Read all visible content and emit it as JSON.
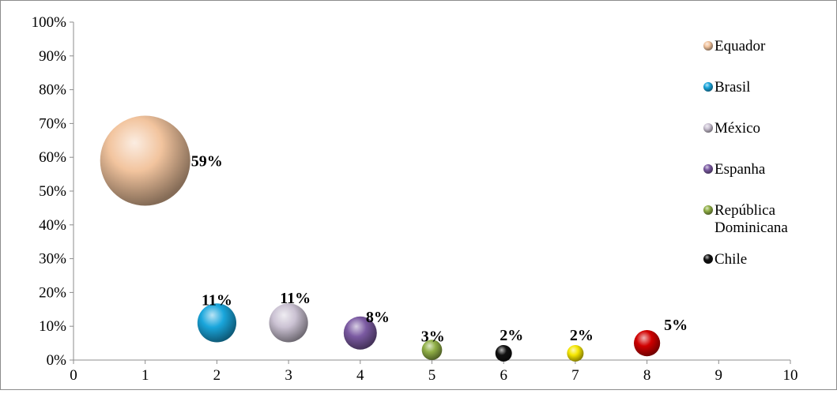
{
  "chart_data": {
    "type": "bubble",
    "xlim": [
      0,
      10
    ],
    "ylim": [
      0,
      100
    ],
    "x_ticks": [
      0,
      1,
      2,
      3,
      4,
      5,
      6,
      7,
      8,
      9,
      10
    ],
    "y_ticks": [
      "0%",
      "10%",
      "20%",
      "30%",
      "40%",
      "50%",
      "60%",
      "70%",
      "80%",
      "90%",
      "100%"
    ],
    "grid": false,
    "legend_position": "right",
    "series": [
      {
        "name": "Equador",
        "x": 1,
        "y": 59,
        "size": 59,
        "label": "59%",
        "color": "#f2c49e"
      },
      {
        "name": "Brasil",
        "x": 2,
        "y": 11,
        "size": 11,
        "label": "11%",
        "color": "#1aa6dc"
      },
      {
        "name": "México",
        "x": 3,
        "y": 11,
        "size": 11,
        "label": "11%",
        "color": "#cbc2d3"
      },
      {
        "name": "Espanha",
        "x": 4,
        "y": 8,
        "size": 8,
        "label": "8%",
        "color": "#7b5aa2"
      },
      {
        "name": "República Dominicana",
        "x": 5,
        "y": 3,
        "size": 3,
        "label": "3%",
        "color": "#8fae45"
      },
      {
        "name": "Chile",
        "x": 6,
        "y": 2,
        "size": 2,
        "label": "2%",
        "color": "#111111"
      },
      {
        "name": "",
        "x": 7,
        "y": 2,
        "size": 2,
        "label": "2%",
        "color": "#f5e600"
      },
      {
        "name": "",
        "x": 8,
        "y": 5,
        "size": 5,
        "label": "5%",
        "color": "#d00000"
      }
    ]
  }
}
